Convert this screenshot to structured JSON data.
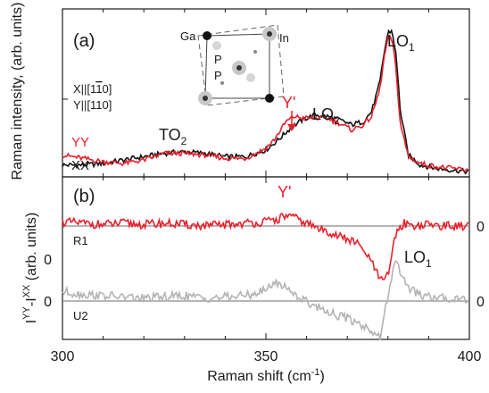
{
  "chart_data": [
    {
      "type": "line",
      "panel_label": "(a)",
      "ylabel": "Raman intensity, (arb. units)",
      "xlim": [
        300,
        400
      ],
      "ylim": [
        0,
        1.0
      ],
      "yticks_labeled": false,
      "series": [
        {
          "name": "YY",
          "color": "#e8212b",
          "x": [
            300,
            305,
            310,
            315,
            320,
            325,
            330,
            335,
            340,
            345,
            350,
            352,
            355,
            357,
            359,
            362,
            365,
            368,
            371,
            374,
            376,
            378,
            379,
            380,
            381,
            382,
            383,
            385,
            388,
            392,
            396,
            400
          ],
          "y": [
            0.13,
            0.11,
            0.09,
            0.08,
            0.1,
            0.14,
            0.14,
            0.13,
            0.11,
            0.11,
            0.17,
            0.22,
            0.33,
            0.36,
            0.35,
            0.35,
            0.35,
            0.32,
            0.28,
            0.31,
            0.36,
            0.52,
            0.7,
            0.83,
            0.82,
            0.63,
            0.32,
            0.12,
            0.08,
            0.06,
            0.05,
            0.04
          ]
        },
        {
          "name": "XX",
          "color": "#111111",
          "x": [
            300,
            305,
            310,
            315,
            320,
            325,
            330,
            335,
            340,
            345,
            350,
            353,
            356,
            359,
            362,
            365,
            368,
            371,
            374,
            376,
            378,
            379,
            380,
            381,
            382,
            383,
            385,
            388,
            392,
            396,
            400
          ],
          "y": [
            0.07,
            0.07,
            0.08,
            0.1,
            0.12,
            0.14,
            0.15,
            0.14,
            0.12,
            0.12,
            0.16,
            0.22,
            0.29,
            0.34,
            0.37,
            0.36,
            0.34,
            0.31,
            0.33,
            0.39,
            0.56,
            0.73,
            0.86,
            0.87,
            0.72,
            0.4,
            0.13,
            0.07,
            0.05,
            0.04,
            0.03
          ]
        }
      ],
      "annotations": {
        "yy": "YY",
        "xx": "XX",
        "to2": "TO",
        "to2_sub": "2",
        "lo2": "LO",
        "lo2_sub": "2",
        "lo1": "LO",
        "lo1_sub": "1",
        "yprime": "Y'",
        "pol1": "X||[1",
        "pol1_bar": "1",
        "pol1_end": "0]",
        "pol2": "Y||[110]",
        "ga": "Ga",
        "in": "In",
        "p1": "P",
        "p2": "P"
      }
    },
    {
      "type": "line",
      "panel_label": "(b)",
      "ylabel_main": "I",
      "ylabel_sup1": "YY",
      "ylabel_mid": "-I",
      "ylabel_sup2": "XX",
      "ylabel_end": " (arb. units)",
      "xlabel": "Raman shift (cm",
      "xlabel_sup": "-1",
      "xlabel_end": ")",
      "xlim": [
        300,
        400
      ],
      "xticks": [
        300,
        350,
        400
      ],
      "ytick_labels": [
        "0",
        "0",
        "0",
        "0"
      ],
      "series": [
        {
          "name": "R1",
          "color": "#e8212b",
          "offset": 0,
          "x": [
            300,
            305,
            310,
            315,
            320,
            325,
            330,
            335,
            340,
            345,
            350,
            353,
            355,
            357,
            360,
            363,
            366,
            369,
            372,
            375,
            377,
            378,
            379,
            380,
            381,
            382,
            384,
            387,
            390,
            395,
            400
          ],
          "y": [
            0.03,
            0.02,
            0.01,
            0.02,
            0.01,
            0.02,
            0.01,
            0.0,
            0.01,
            0.02,
            0.03,
            0.05,
            0.08,
            0.06,
            0.02,
            -0.02,
            -0.05,
            -0.09,
            -0.12,
            -0.22,
            -0.33,
            -0.4,
            -0.42,
            -0.36,
            -0.2,
            -0.05,
            0.02,
            0.0,
            0.01,
            0.0,
            0.0
          ]
        },
        {
          "name": "U2",
          "color": "#b3b3b3",
          "offset": 0,
          "x": [
            300,
            305,
            310,
            315,
            320,
            325,
            330,
            335,
            340,
            345,
            350,
            352,
            354,
            356,
            358,
            361,
            364,
            367,
            370,
            373,
            376,
            378,
            379,
            380,
            381,
            382,
            383,
            385,
            388,
            392,
            396,
            400
          ],
          "y": [
            0.07,
            0.05,
            0.04,
            0.03,
            0.02,
            0.03,
            0.04,
            0.02,
            0.03,
            0.04,
            0.08,
            0.14,
            0.12,
            0.08,
            0.03,
            -0.02,
            -0.06,
            -0.1,
            -0.13,
            -0.17,
            -0.22,
            -0.28,
            -0.12,
            0.05,
            0.2,
            0.28,
            0.22,
            0.1,
            0.04,
            0.02,
            0.02,
            0.02
          ]
        }
      ],
      "annotations": {
        "r1": "R1",
        "u2": "U2",
        "yprime": "Y'",
        "lo1": "LO",
        "lo1_sub": "1"
      }
    }
  ]
}
